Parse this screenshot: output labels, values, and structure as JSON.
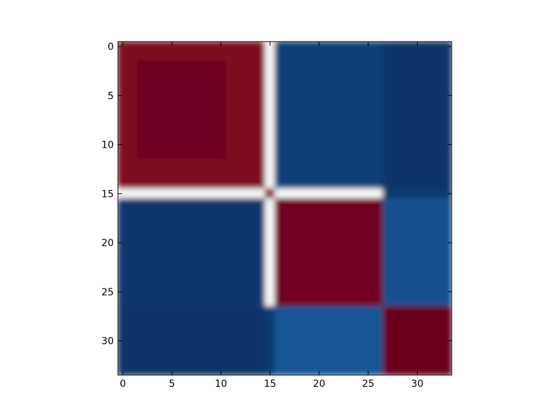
{
  "chart_data": {
    "type": "heatmap",
    "title": "",
    "xlabel": "",
    "ylabel": "",
    "grid": false,
    "colormap": "RdBu_r",
    "xlim": [
      -0.5,
      33.5
    ],
    "ylim": [
      33.5,
      -0.5
    ],
    "value_range": [
      -1,
      1
    ],
    "x_ticks": [
      {
        "value": 0,
        "label": "0"
      },
      {
        "value": 5,
        "label": "5"
      },
      {
        "value": 10,
        "label": "10"
      },
      {
        "value": 15,
        "label": "15"
      },
      {
        "value": 20,
        "label": "20"
      },
      {
        "value": 25,
        "label": "25"
      },
      {
        "value": 30,
        "label": "30"
      }
    ],
    "y_ticks": [
      {
        "value": 0,
        "label": "0"
      },
      {
        "value": 5,
        "label": "5"
      },
      {
        "value": 10,
        "label": "10"
      },
      {
        "value": 15,
        "label": "15"
      },
      {
        "value": 20,
        "label": "20"
      },
      {
        "value": 25,
        "label": "25"
      },
      {
        "value": 30,
        "label": "30"
      }
    ],
    "blocks": [
      {
        "rows": [
          0,
          14
        ],
        "cols": [
          0,
          14
        ],
        "value": 0.92
      },
      {
        "rows": [
          2,
          11
        ],
        "cols": [
          2,
          10
        ],
        "value": 0.98
      },
      {
        "rows": [
          0,
          14
        ],
        "cols": [
          16,
          26
        ],
        "value": -0.92
      },
      {
        "rows": [
          0,
          14
        ],
        "cols": [
          27,
          33
        ],
        "value": -0.97
      },
      {
        "rows": [
          16,
          26
        ],
        "cols": [
          0,
          14
        ],
        "value": -0.96
      },
      {
        "rows": [
          16,
          26
        ],
        "cols": [
          16,
          26
        ],
        "value": 0.96
      },
      {
        "rows": [
          16,
          26
        ],
        "cols": [
          27,
          33
        ],
        "value": -0.85
      },
      {
        "rows": [
          27,
          33
        ],
        "cols": [
          0,
          14
        ],
        "value": -0.97
      },
      {
        "rows": [
          27,
          33
        ],
        "cols": [
          16,
          26
        ],
        "value": -0.82
      },
      {
        "rows": [
          27,
          33
        ],
        "cols": [
          27,
          33
        ],
        "value": 0.99
      }
    ],
    "bands": [
      {
        "row": 15,
        "cols": [
          0,
          26
        ],
        "value": 0.0
      },
      {
        "col": 15,
        "rows": [
          0,
          26
        ],
        "value": 0.0
      },
      {
        "row": 15,
        "col": 15,
        "value": 0.9
      }
    ]
  }
}
